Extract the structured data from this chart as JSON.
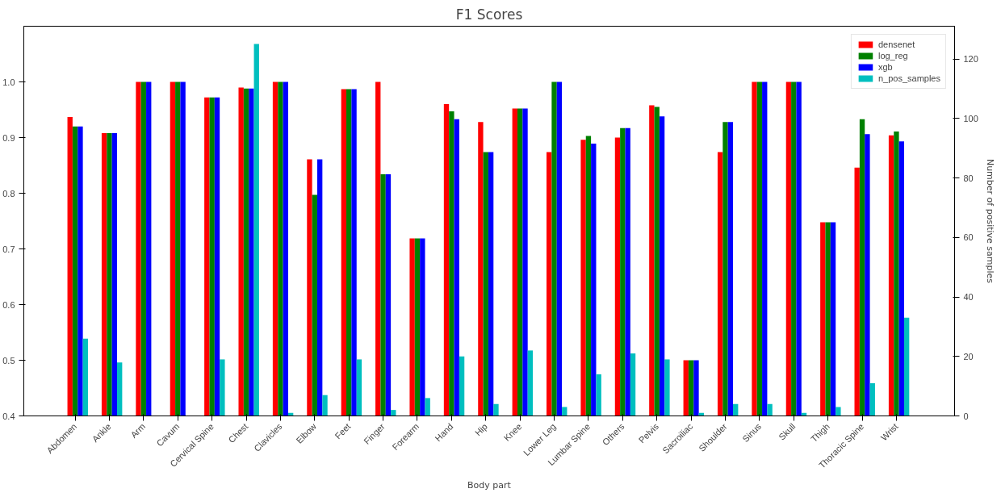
{
  "chart_data": {
    "type": "bar",
    "title": "F1 Scores",
    "xlabel": "Body part",
    "y2label": "Number of positive samples",
    "categories": [
      "Abdomen",
      "Ankle",
      "Arm",
      "Cavum",
      "Cervical Spine",
      "Chest",
      "Clavicles",
      "Elbow",
      "Feet",
      "Finger",
      "Forearm",
      "Hand",
      "Hip",
      "Knee",
      "Lower Leg",
      "Lumbar Spine",
      "Others",
      "Pelvis",
      "Sacroiliac",
      "Shoulder",
      "Sinus",
      "Skull",
      "Thigh",
      "Thoracic Spine",
      "Wrist"
    ],
    "series": [
      {
        "name": "densenet",
        "color": "#ff0000",
        "values": [
          0.937,
          0.908,
          1.0,
          1.0,
          0.972,
          0.99,
          1.0,
          0.861,
          0.987,
          1.0,
          0.719,
          0.96,
          0.928,
          0.952,
          0.874,
          0.896,
          0.9,
          0.958,
          0.5,
          0.874,
          1.0,
          1.0,
          0.748,
          0.846,
          0.904
        ]
      },
      {
        "name": "log_reg",
        "color": "#008000",
        "values": [
          0.92,
          0.908,
          1.0,
          1.0,
          0.972,
          0.988,
          1.0,
          0.797,
          0.987,
          0.834,
          0.719,
          0.947,
          0.874,
          0.952,
          1.0,
          0.903,
          0.917,
          0.955,
          0.5,
          0.928,
          1.0,
          1.0,
          0.748,
          0.933,
          0.911
        ]
      },
      {
        "name": "xgb",
        "color": "#0000ff",
        "values": [
          0.92,
          0.908,
          1.0,
          1.0,
          0.972,
          0.988,
          1.0,
          0.861,
          0.987,
          0.834,
          0.719,
          0.933,
          0.874,
          0.952,
          1.0,
          0.889,
          0.917,
          0.938,
          0.5,
          0.928,
          1.0,
          1.0,
          0.748,
          0.906,
          0.893
        ]
      },
      {
        "name": "n_pos_samples",
        "color": "#00bfbf",
        "axis": "y2",
        "values": [
          26,
          18,
          0,
          0,
          19,
          125,
          1,
          7,
          19,
          2,
          6,
          20,
          4,
          22,
          3,
          14,
          21,
          19,
          1,
          4,
          4,
          1,
          3,
          11,
          33
        ]
      }
    ],
    "ylim": [
      0.4,
      1.1
    ],
    "yticks": [
      0.4,
      0.5,
      0.6,
      0.7,
      0.8,
      0.9,
      {
        "value": 1.0,
        "label": "1.0"
      }
    ],
    "y2lim": [
      0,
      131
    ],
    "y2ticks": [
      0,
      20,
      40,
      60,
      80,
      100,
      120
    ],
    "grid": false,
    "legend": "top right"
  }
}
